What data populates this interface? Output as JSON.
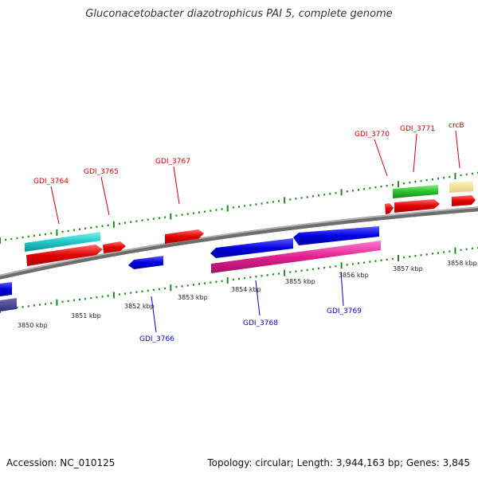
{
  "title": "Gluconacetobacter diazotrophicus PAI 5, complete genome",
  "footer": {
    "accession": "Accession: NC_010125",
    "topology": "Topology: circular; Length: 3,944,163 bp; Genes: 3,845"
  },
  "colors": {
    "label_forward": "#cc0000",
    "label_reverse": "#0000cc",
    "tick": "#1f8a1f",
    "backbone": "#7a7a7a"
  },
  "kbp_labels": [
    "3850 kbp",
    "3851 kbp",
    "3852 kbp",
    "3853 kbp",
    "3854 kbp",
    "3855 kbp",
    "3856 kbp",
    "3857 kbp",
    "3858 kbp"
  ],
  "genes_forward": [
    "GDI_3764",
    "GDI_3765",
    "GDI_3767",
    "GDI_3770",
    "GDI_3771",
    "crcB"
  ],
  "genes_reverse": [
    "GDI_3766",
    "GDI_3768",
    "GDI_3769"
  ]
}
